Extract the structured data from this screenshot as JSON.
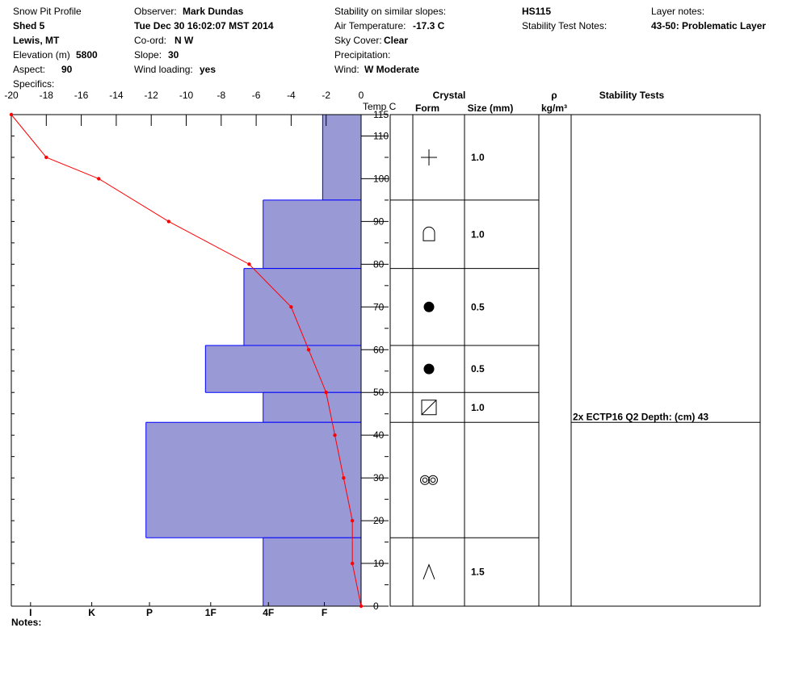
{
  "header": {
    "profile_label": "Snow Pit Profile",
    "pit_name": "Shed 5",
    "location": "Lewis, MT",
    "elevation_label": "Elevation (m)",
    "elevation_value": "5800",
    "aspect_label": "Aspect:",
    "aspect_value": "90",
    "specifics_label": "Specifics:",
    "observer_label": "Observer:",
    "observer_value": "Mark Dundas",
    "date_value": "Tue Dec 30 16:02:07 MST 2014",
    "coord_label": "Co-ord:",
    "coord_value": "N  W",
    "slope_label": "Slope:",
    "slope_value": "30",
    "wind_loading_label": "Wind loading:",
    "wind_loading_value": "yes",
    "stability_similar_label": "Stability on similar slopes:",
    "air_temp_label": "Air Temperature:",
    "air_temp_value": "-17.3 C",
    "sky_cover_label": "Sky Cover:",
    "sky_cover_value": "Clear",
    "precip_label": "Precipitation:",
    "wind_label": "Wind:",
    "wind_value": "W Moderate",
    "hs_value": "HS115",
    "stability_test_notes_label": "Stability Test Notes:",
    "layer_notes_label": "Layer notes:",
    "layer_notes_value": "43-50: Problematic Layer"
  },
  "footer": {
    "notes_label": "Notes:"
  },
  "columns": {
    "crystal": "Crystal",
    "form": "Form",
    "size": "Size (mm)",
    "rho": "ρ",
    "rho_unit": "kg/m³",
    "stability_tests": "Stability Tests",
    "temp_label": "Temp C"
  },
  "chart_data": {
    "type": "bar",
    "temp_axis": {
      "min": -20,
      "max": 0,
      "ticks": [
        -20,
        -18,
        -16,
        -14,
        -12,
        -10,
        -8,
        -6,
        -4,
        -2,
        0
      ]
    },
    "depth_axis": {
      "min": 0,
      "max": 115,
      "ticks": [
        0,
        10,
        20,
        30,
        40,
        50,
        60,
        70,
        80,
        90,
        100,
        110,
        115
      ]
    },
    "hardness_labels": [
      "I",
      "K",
      "P",
      "1F",
      "4F",
      "F"
    ],
    "hardness_label_temps": [
      -18.9,
      -15.4,
      -12.1,
      -8.6,
      -5.3,
      -2.1
    ],
    "bar_color": "#9999d6",
    "bar_outline_color": "#0000ff",
    "temp_line_color": "#ff0000",
    "layers": [
      {
        "bottom": 95,
        "top": 115,
        "hardness_temp": -2.2
      },
      {
        "bottom": 79,
        "top": 95,
        "hardness_temp": -5.6
      },
      {
        "bottom": 61,
        "top": 79,
        "hardness_temp": -6.7
      },
      {
        "bottom": 50,
        "top": 61,
        "hardness_temp": -8.9
      },
      {
        "bottom": 43,
        "top": 50,
        "hardness_temp": -5.6
      },
      {
        "bottom": 16,
        "top": 43,
        "hardness_temp": -12.3
      },
      {
        "bottom": 0,
        "top": 16,
        "hardness_temp": -5.6
      }
    ],
    "temperature_profile": [
      {
        "depth": 115,
        "temp": -20
      },
      {
        "depth": 105,
        "temp": -18
      },
      {
        "depth": 100,
        "temp": -15
      },
      {
        "depth": 90,
        "temp": -11
      },
      {
        "depth": 80,
        "temp": -6.4
      },
      {
        "depth": 70,
        "temp": -4
      },
      {
        "depth": 60,
        "temp": -3
      },
      {
        "depth": 50,
        "temp": -2
      },
      {
        "depth": 40,
        "temp": -1.5
      },
      {
        "depth": 30,
        "temp": -1
      },
      {
        "depth": 20,
        "temp": -0.5
      },
      {
        "depth": 10,
        "temp": -0.5
      },
      {
        "depth": 0,
        "temp": 0
      }
    ],
    "crystal_layers": [
      {
        "bottom": 95,
        "top": 115,
        "form": "precipitation-particles-icon",
        "size": "1.0"
      },
      {
        "bottom": 79,
        "top": 95,
        "form": "decomposing-fragments-icon",
        "size": "1.0"
      },
      {
        "bottom": 61,
        "top": 79,
        "form": "rounded-grains-icon",
        "size": "0.5"
      },
      {
        "bottom": 50,
        "top": 61,
        "form": "rounded-grains-icon",
        "size": "0.5"
      },
      {
        "bottom": 43,
        "top": 50,
        "form": "faceted-crystals-icon",
        "size": "1.0"
      },
      {
        "bottom": 16,
        "top": 43,
        "form": "melt-forms-icon",
        "size": ""
      },
      {
        "bottom": 0,
        "top": 16,
        "form": "depth-hoar-icon",
        "size": "1.5"
      }
    ],
    "stability_tests": [
      {
        "depth": 43,
        "text": "2x ECTP16 Q2 Depth: (cm) 43"
      }
    ]
  }
}
